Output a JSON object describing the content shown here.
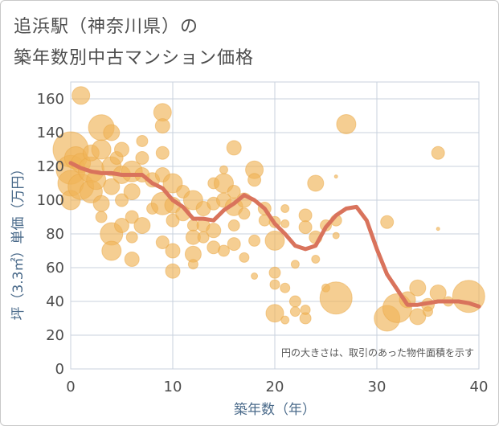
{
  "header": {
    "title_line1": "追浜駅（神奈川県）の",
    "title_line2": "築年数別中古マンション価格"
  },
  "chart_data": {
    "type": "scatter",
    "title": "追浜駅（神奈川県）の築年数別中古マンション価格",
    "xlabel": "築年数（年）",
    "ylabel": "坪（3.3㎡）単価（万円）",
    "xlim": [
      0,
      40
    ],
    "ylim": [
      0,
      170
    ],
    "xticks": [
      0,
      10,
      20,
      30,
      40
    ],
    "yticks": [
      0,
      20,
      40,
      60,
      80,
      100,
      120,
      140,
      160
    ],
    "grid": true,
    "note": "円の大きさは、取引のあった物件面積を示す",
    "colors": {
      "bubble": "#f0b458",
      "line": "#d9735c",
      "grid": "#c9d2dd"
    },
    "trend": {
      "x": [
        0,
        1,
        2,
        3,
        4,
        5,
        6,
        7,
        8,
        9,
        10,
        11,
        12,
        13,
        14,
        15,
        16,
        17,
        18,
        19,
        20,
        21,
        22,
        23,
        24,
        25,
        26,
        27,
        28,
        29,
        30,
        31,
        32,
        33,
        34,
        35,
        36,
        37,
        38,
        39,
        40
      ],
      "y": [
        122,
        119,
        117,
        116,
        116,
        115,
        115,
        115,
        110,
        107,
        100,
        96,
        89,
        89,
        88,
        94,
        98,
        103,
        100,
        95,
        86,
        80,
        73,
        71,
        73,
        84,
        91,
        95,
        96,
        88,
        71,
        56,
        47,
        38,
        38,
        39,
        40,
        40,
        40,
        39,
        37
      ]
    },
    "points": [
      [
        0,
        130,
        22
      ],
      [
        0,
        118,
        18
      ],
      [
        0,
        110,
        16
      ],
      [
        0,
        100,
        12
      ],
      [
        0.5,
        125,
        14
      ],
      [
        1,
        162,
        11
      ],
      [
        1,
        108,
        16
      ],
      [
        1,
        122,
        12
      ],
      [
        2,
        118,
        16
      ],
      [
        2,
        105,
        14
      ],
      [
        2,
        128,
        10
      ],
      [
        2.5,
        112,
        12
      ],
      [
        3,
        143,
        16
      ],
      [
        3,
        130,
        12
      ],
      [
        3,
        98,
        10
      ],
      [
        3,
        90,
        7
      ],
      [
        4,
        140,
        10
      ],
      [
        4,
        120,
        12
      ],
      [
        4,
        108,
        10
      ],
      [
        4,
        80,
        14
      ],
      [
        4,
        70,
        12
      ],
      [
        4.5,
        125,
        8
      ],
      [
        5,
        130,
        9
      ],
      [
        5,
        115,
        11
      ],
      [
        5,
        100,
        8
      ],
      [
        5,
        85,
        9
      ],
      [
        6,
        117,
        13
      ],
      [
        6,
        105,
        10
      ],
      [
        6,
        90,
        8
      ],
      [
        6,
        78,
        7
      ],
      [
        6,
        65,
        9
      ],
      [
        7,
        135,
        7
      ],
      [
        7,
        125,
        8
      ],
      [
        7,
        115,
        9
      ],
      [
        7,
        85,
        10
      ],
      [
        8,
        112,
        9
      ],
      [
        8,
        95,
        7
      ],
      [
        9,
        152,
        11
      ],
      [
        9,
        144,
        9
      ],
      [
        9,
        128,
        8
      ],
      [
        9,
        115,
        9
      ],
      [
        9,
        98,
        14
      ],
      [
        9,
        75,
        8
      ],
      [
        10,
        110,
        12
      ],
      [
        10,
        97,
        10
      ],
      [
        10,
        88,
        8
      ],
      [
        10,
        70,
        9
      ],
      [
        10,
        58,
        9
      ],
      [
        11,
        105,
        8
      ],
      [
        11,
        92,
        9
      ],
      [
        12,
        100,
        12
      ],
      [
        12,
        85,
        7
      ],
      [
        12,
        78,
        9
      ],
      [
        12,
        68,
        10
      ],
      [
        12,
        62,
        6
      ],
      [
        13,
        95,
        9
      ],
      [
        13,
        85,
        8
      ],
      [
        13,
        78,
        7
      ],
      [
        14,
        110,
        7
      ],
      [
        14,
        98,
        8
      ],
      [
        14,
        82,
        9
      ],
      [
        14,
        72,
        8
      ],
      [
        15,
        118,
        5
      ],
      [
        15,
        110,
        12
      ],
      [
        15,
        100,
        9
      ],
      [
        15,
        70,
        7
      ],
      [
        16,
        131,
        9
      ],
      [
        16,
        105,
        8
      ],
      [
        16,
        96,
        11
      ],
      [
        16,
        85,
        7
      ],
      [
        16,
        74,
        8
      ],
      [
        17,
        100,
        9
      ],
      [
        17,
        92,
        7
      ],
      [
        17,
        66,
        6
      ],
      [
        18,
        118,
        11
      ],
      [
        18,
        112,
        8
      ],
      [
        18,
        76,
        7
      ],
      [
        18,
        55,
        4
      ],
      [
        19,
        95,
        8
      ],
      [
        19,
        88,
        7
      ],
      [
        20,
        87,
        7
      ],
      [
        20,
        76,
        12
      ],
      [
        20,
        57,
        7
      ],
      [
        20,
        50,
        6
      ],
      [
        20,
        33,
        11
      ],
      [
        21,
        95,
        5
      ],
      [
        21,
        86,
        5
      ],
      [
        21,
        48,
        6
      ],
      [
        21,
        29,
        5
      ],
      [
        22,
        62,
        5
      ],
      [
        22,
        40,
        7
      ],
      [
        22,
        34,
        6
      ],
      [
        23,
        91,
        8
      ],
      [
        23,
        84,
        8
      ],
      [
        23,
        35,
        6
      ],
      [
        23,
        30,
        7
      ],
      [
        24,
        110,
        10
      ],
      [
        24,
        78,
        8
      ],
      [
        24,
        65,
        5
      ],
      [
        25,
        85,
        7
      ],
      [
        25,
        48,
        5
      ],
      [
        26,
        114,
        2
      ],
      [
        26,
        88,
        7
      ],
      [
        26,
        79,
        4
      ],
      [
        26,
        42,
        20
      ],
      [
        27,
        145,
        12
      ],
      [
        31,
        87,
        8
      ],
      [
        31,
        30,
        16
      ],
      [
        32,
        36,
        18
      ],
      [
        33,
        41,
        10
      ],
      [
        34,
        48,
        10
      ],
      [
        34,
        31,
        10
      ],
      [
        35,
        38,
        8
      ],
      [
        35,
        34,
        6
      ],
      [
        36,
        128,
        8
      ],
      [
        36,
        83,
        2
      ],
      [
        36,
        45,
        10
      ],
      [
        37,
        40,
        6
      ],
      [
        39,
        43,
        20
      ]
    ]
  }
}
